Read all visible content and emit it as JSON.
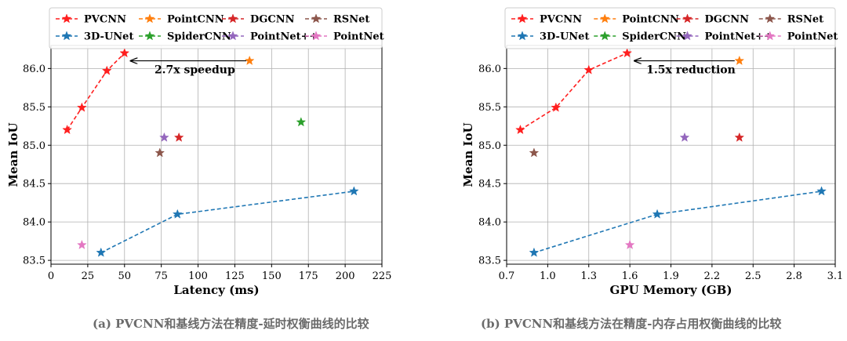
{
  "captions": {
    "a": "(a) PVCNN和基线方法在精度-延时权衡曲线的比较",
    "b": "(b) PVCNN和基线方法在精度-内存占用权衡曲线的比较"
  },
  "legend": [
    {
      "name": "PVCNN",
      "color": "#ff1f1f",
      "dashed": true
    },
    {
      "name": "PointCNN",
      "color": "#ff7f0e",
      "dashed": true
    },
    {
      "name": "DGCNN",
      "color": "#d62728",
      "dashed": true
    },
    {
      "name": "RSNet",
      "color": "#8c564b",
      "dashed": true
    },
    {
      "name": "3D-UNet",
      "color": "#1f77b4",
      "dashed": true
    },
    {
      "name": "SpiderCNN",
      "color": "#2ca02c",
      "dashed": true
    },
    {
      "name": "PointNet++",
      "color": "#9467bd",
      "dashed": true
    },
    {
      "name": "PointNet",
      "color": "#e377c2",
      "dashed": true
    }
  ],
  "chart_data": [
    {
      "type": "scatter",
      "xlabel": "Latency (ms)",
      "ylabel": "Mean IoU",
      "xlim": [
        0,
        225
      ],
      "ylim": [
        83.45,
        86.3
      ],
      "xticks": [
        0,
        25,
        50,
        75,
        100,
        125,
        150,
        175,
        200,
        225
      ],
      "yticks": [
        83.5,
        84.0,
        84.5,
        85.0,
        85.5,
        86.0
      ],
      "grid": true,
      "legend_position": "top",
      "annotation": {
        "text": "2.7x speedup",
        "from": [
          136,
          86.1
        ],
        "to": [
          51,
          86.1
        ]
      },
      "series": [
        {
          "name": "PVCNN",
          "color": "#ff1f1f",
          "line": true,
          "points": [
            [
              11,
              85.2
            ],
            [
              21,
              85.49
            ],
            [
              38,
              85.97
            ],
            [
              50,
              86.2
            ]
          ]
        },
        {
          "name": "3D-UNet",
          "color": "#1f77b4",
          "line": true,
          "points": [
            [
              34,
              83.6
            ],
            [
              86,
              84.1
            ],
            [
              206,
              84.4
            ]
          ]
        },
        {
          "name": "PointCNN",
          "color": "#ff7f0e",
          "line": false,
          "points": [
            [
              135,
              86.1
            ]
          ]
        },
        {
          "name": "DGCNN",
          "color": "#d62728",
          "line": false,
          "points": [
            [
              87,
              85.1
            ]
          ]
        },
        {
          "name": "RSNet",
          "color": "#8c564b",
          "line": false,
          "points": [
            [
              74,
              84.9
            ]
          ]
        },
        {
          "name": "SpiderCNN",
          "color": "#2ca02c",
          "line": false,
          "points": [
            [
              170,
              85.3
            ]
          ]
        },
        {
          "name": "PointNet++",
          "color": "#9467bd",
          "line": false,
          "points": [
            [
              77,
              85.1
            ]
          ]
        },
        {
          "name": "PointNet",
          "color": "#e377c2",
          "line": false,
          "points": [
            [
              21,
              83.7
            ]
          ]
        }
      ]
    },
    {
      "type": "scatter",
      "xlabel": "GPU Memory (GB)",
      "ylabel": "Mean IoU",
      "xlim": [
        0.7,
        3.1
      ],
      "ylim": [
        83.45,
        86.3
      ],
      "xticks": [
        0.7,
        1.0,
        1.3,
        1.6,
        1.9,
        2.2,
        2.5,
        2.8,
        3.1
      ],
      "yticks": [
        83.5,
        84.0,
        84.5,
        85.0,
        85.5,
        86.0
      ],
      "grid": true,
      "legend_position": "top",
      "annotation": {
        "text": "1.5x reduction",
        "from": [
          2.4,
          86.1
        ],
        "to": [
          1.6,
          86.1
        ]
      },
      "series": [
        {
          "name": "PVCNN",
          "color": "#ff1f1f",
          "line": true,
          "points": [
            [
              0.8,
              85.2
            ],
            [
              1.06,
              85.49
            ],
            [
              1.3,
              85.98
            ],
            [
              1.58,
              86.2
            ]
          ]
        },
        {
          "name": "3D-UNet",
          "color": "#1f77b4",
          "line": true,
          "points": [
            [
              0.9,
              83.6
            ],
            [
              1.8,
              84.1
            ],
            [
              3.0,
              84.4
            ]
          ]
        },
        {
          "name": "PointCNN",
          "color": "#ff7f0e",
          "line": false,
          "points": [
            [
              2.4,
              86.1
            ]
          ]
        },
        {
          "name": "DGCNN",
          "color": "#d62728",
          "line": false,
          "points": [
            [
              2.4,
              85.1
            ]
          ]
        },
        {
          "name": "RSNet",
          "color": "#8c564b",
          "line": false,
          "points": [
            [
              0.9,
              84.9
            ]
          ]
        },
        {
          "name": "SpiderCNN",
          "color": "#2ca02c",
          "line": false,
          "points": []
        },
        {
          "name": "PointNet++",
          "color": "#9467bd",
          "line": false,
          "points": [
            [
              2.0,
              85.1
            ]
          ]
        },
        {
          "name": "PointNet",
          "color": "#e377c2",
          "line": false,
          "points": [
            [
              1.6,
              83.7
            ]
          ]
        }
      ]
    }
  ]
}
